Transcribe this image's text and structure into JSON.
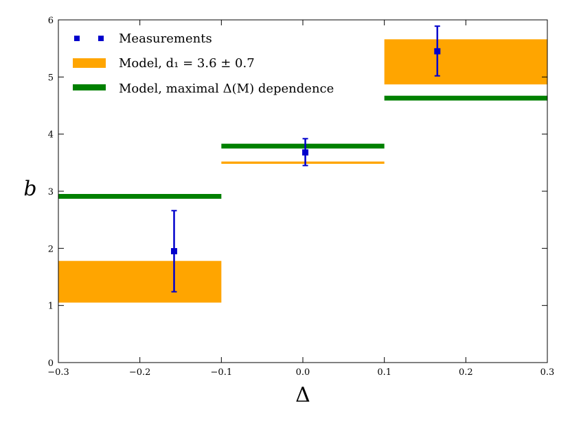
{
  "chart_data": {
    "type": "errorbar+bands",
    "title": "",
    "xlabel": "Δ",
    "ylabel": "b",
    "xlim": [
      -0.3,
      0.3
    ],
    "ylim": [
      0,
      6
    ],
    "x_ticks": [
      -0.3,
      -0.2,
      -0.1,
      0.0,
      0.1,
      0.2,
      0.3
    ],
    "x_tick_labels": [
      "−0.3",
      "−0.2",
      "−0.1",
      "0.0",
      "0.1",
      "0.2",
      "0.3"
    ],
    "y_ticks": [
      0,
      1,
      2,
      3,
      4,
      5,
      6
    ],
    "y_tick_labels": [
      "0",
      "1",
      "2",
      "3",
      "4",
      "5",
      "6"
    ],
    "grid": false,
    "legend": {
      "placement": "top-left",
      "entries": [
        {
          "key": "measurements",
          "label": "Measurements",
          "marker": "square",
          "color": "#0000cc"
        },
        {
          "key": "model_d1",
          "label": "Model, d₁ = 3.6 ± 0.7",
          "marker": "band",
          "color": "#ffa500"
        },
        {
          "key": "model_maximal",
          "label": "Model, maximal Δ(M) dependence",
          "marker": "line",
          "color": "#008000"
        }
      ]
    },
    "series": [
      {
        "key": "measurements",
        "name": "Measurements",
        "color": "#0000cc",
        "points": [
          {
            "x": -0.158,
            "y": 1.95,
            "yerr_low": 1.24,
            "yerr_high": 2.66
          },
          {
            "x": 0.003,
            "y": 3.68,
            "yerr_low": 3.45,
            "yerr_high": 3.92
          },
          {
            "x": 0.165,
            "y": 5.45,
            "yerr_low": 5.02,
            "yerr_high": 5.89
          }
        ]
      },
      {
        "key": "model_d1",
        "name": "Model, d₁ = 3.6 ± 0.7",
        "color": "#ffa500",
        "bands": [
          {
            "x0": -0.3,
            "x1": -0.1,
            "y_low": 1.05,
            "y_high": 1.78
          },
          {
            "x0": -0.1,
            "x1": 0.1,
            "y_low": 3.48,
            "y_high": 3.52
          },
          {
            "x0": 0.1,
            "x1": 0.3,
            "y_low": 4.87,
            "y_high": 5.66
          }
        ]
      },
      {
        "key": "model_maximal",
        "name": "Model, maximal Δ(M) dependence",
        "color": "#008000",
        "levels": [
          {
            "x0": -0.3,
            "x1": -0.1,
            "y": 2.91
          },
          {
            "x0": -0.1,
            "x1": 0.1,
            "y": 3.79
          },
          {
            "x0": 0.1,
            "x1": 0.3,
            "y": 4.63
          }
        ]
      }
    ]
  }
}
